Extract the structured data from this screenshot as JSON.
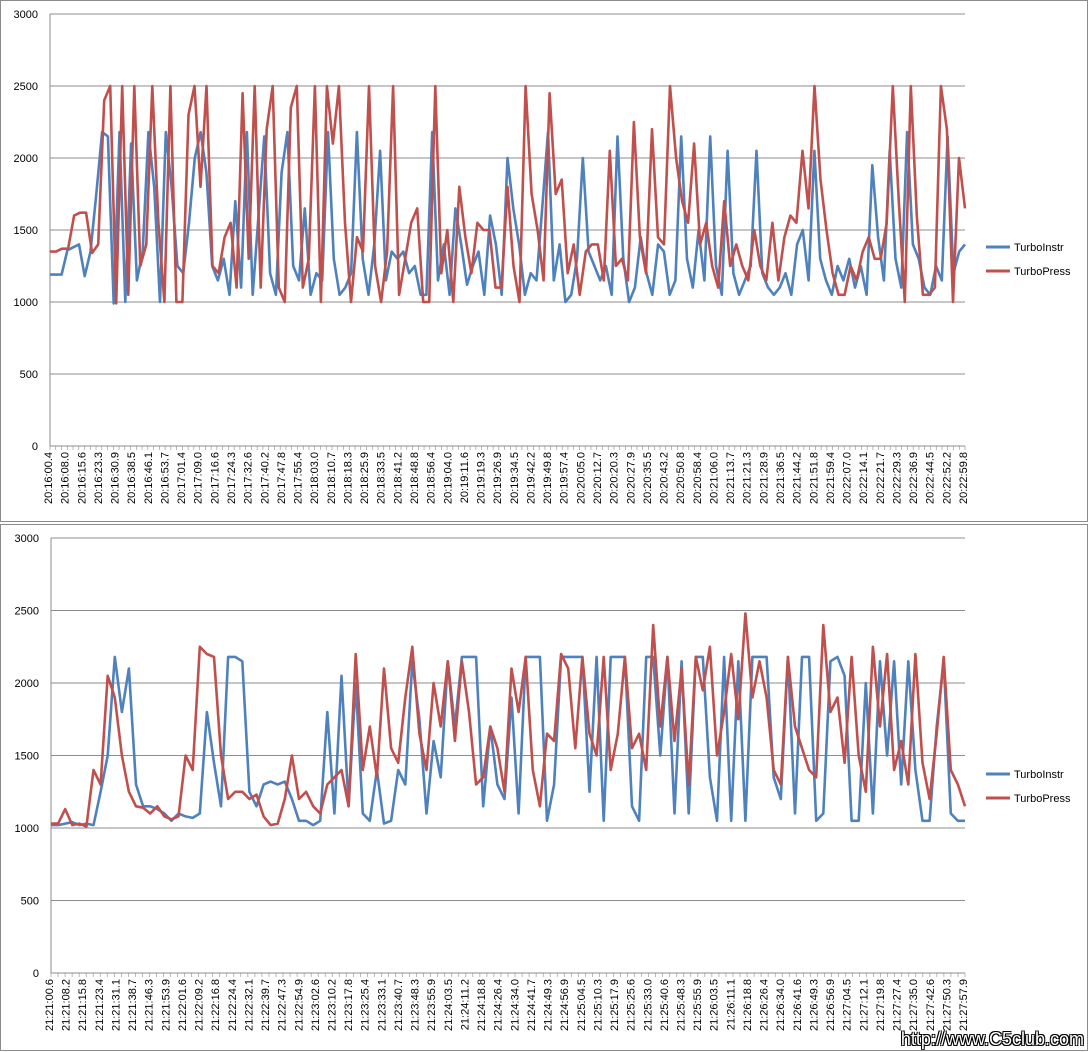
{
  "colors": {
    "instr": "#4f81bd",
    "press": "#c0504d",
    "grid": "#8c8c8c"
  },
  "watermark": "http://www.C5club.com",
  "chart_data": [
    {
      "type": "line",
      "ylim": [
        0,
        3000
      ],
      "yticks": [
        0,
        500,
        1000,
        1500,
        2000,
        2500,
        3000
      ],
      "grid": true,
      "legend": "right",
      "xlabels": [
        "20:16:00.4",
        "20:16:08.0",
        "20:16:15.6",
        "20:16:23.3",
        "20:16:30.9",
        "20:16:38.5",
        "20:16:46.1",
        "20:16:53.7",
        "20:17:01.4",
        "20:17:09.0",
        "20:17:16.6",
        "20:17:24.3",
        "20:17:32.6",
        "20:17:40.2",
        "20:17:47.8",
        "20:17:55.4",
        "20:18:03.0",
        "20:18:10.7",
        "20:18:18.3",
        "20:18:25.9",
        "20:18:33.5",
        "20:18:41.2",
        "20:18:48.8",
        "20:18:56.4",
        "20:19:04.0",
        "20:19:11.6",
        "20:19:19.3",
        "20:19:26.9",
        "20:19:34.5",
        "20:19:42.2",
        "20:19:49.8",
        "20:19:57.4",
        "20:20:05.0",
        "20:20:12.7",
        "20:20:20.3",
        "20:20:27.9",
        "20:20:35.5",
        "20:20:43.2",
        "20:20:50.8",
        "20:20:58.4",
        "20:21:06.0",
        "20:21:13.7",
        "20:21:21.3",
        "20:21:28.9",
        "20:21:36.5",
        "20:21:44.2",
        "20:21:51.8",
        "20:21:59.4",
        "20:22:07.0",
        "20:22:14.1",
        "20:22:21.7",
        "20:22:29.3",
        "20:22:36.9",
        "20:22:44.5",
        "20:22:52.2",
        "20:22:59.8"
      ],
      "series": [
        {
          "name": "TurboInstr",
          "values": [
            1190,
            1190,
            1190,
            1360,
            1380,
            1400,
            1180,
            1350,
            1750,
            2180,
            2150,
            990,
            2180,
            1000,
            2100,
            1150,
            1350,
            2180,
            1800,
            1000,
            2180,
            1800,
            1250,
            1200,
            1550,
            2000,
            2180,
            1900,
            1250,
            1150,
            1300,
            1050,
            1700,
            1100,
            2180,
            1050,
            1600,
            2150,
            1200,
            1050,
            1900,
            2180,
            1250,
            1150,
            1650,
            1050,
            1200,
            1150,
            2180,
            1300,
            1050,
            1100,
            1200,
            2180,
            1300,
            1050,
            1400,
            2050,
            1150,
            1350,
            1300,
            1350,
            1200,
            1250,
            1050,
            1050,
            2180,
            1150,
            1400,
            1050,
            1650,
            1400,
            1120,
            1250,
            1350,
            1050,
            1600,
            1400,
            1050,
            2000,
            1650,
            1400,
            1050,
            1200,
            1150,
            1650,
            2180,
            1150,
            1400,
            1000,
            1050,
            1300,
            2000,
            1350,
            1250,
            1150,
            1250,
            1050,
            2150,
            1300,
            1000,
            1100,
            1450,
            1200,
            1050,
            1400,
            1350,
            1050,
            1150,
            2150,
            1300,
            1100,
            1500,
            1150,
            2150,
            1250,
            1050,
            2050,
            1200,
            1050,
            1150,
            1250,
            2050,
            1200,
            1100,
            1050,
            1100,
            1200,
            1050,
            1400,
            1500,
            1150,
            2050,
            1300,
            1150,
            1050,
            1250,
            1150,
            1300,
            1100,
            1250,
            1050,
            1950,
            1450,
            1150,
            2050,
            1300,
            1100,
            2180,
            1400,
            1300,
            1100,
            1050,
            1250,
            1150,
            2150,
            1200,
            1350,
            1400
          ]
        },
        {
          "name": "TurboPress",
          "values": [
            1350,
            1350,
            1370,
            1370,
            1600,
            1620,
            1620,
            1340,
            1400,
            2400,
            2500,
            990,
            2500,
            1050,
            2500,
            1250,
            1400,
            2500,
            1550,
            1000,
            2500,
            1000,
            1000,
            2300,
            2500,
            1800,
            2500,
            1250,
            1200,
            1450,
            1550,
            1100,
            2450,
            1300,
            2500,
            1100,
            2200,
            2500,
            1100,
            1000,
            2350,
            2500,
            1100,
            1300,
            2500,
            1000,
            2500,
            2100,
            2500,
            1550,
            1000,
            1450,
            1350,
            2500,
            1250,
            1000,
            1350,
            2500,
            1050,
            1300,
            1550,
            1650,
            1000,
            1000,
            2500,
            1200,
            1500,
            1000,
            1800,
            1450,
            1200,
            1550,
            1500,
            1500,
            1100,
            1100,
            1800,
            1250,
            1000,
            2500,
            1750,
            1500,
            1150,
            2450,
            1750,
            1850,
            1200,
            1400,
            1050,
            1350,
            1400,
            1400,
            1150,
            2050,
            1250,
            1300,
            1150,
            2250,
            1450,
            1200,
            2200,
            1450,
            1400,
            2500,
            2000,
            1700,
            1550,
            2100,
            1400,
            1550,
            1250,
            1100,
            1700,
            1250,
            1400,
            1250,
            1150,
            1500,
            1250,
            1150,
            1550,
            1150,
            1450,
            1600,
            1550,
            2050,
            1650,
            2500,
            1850,
            1500,
            1200,
            1050,
            1050,
            1250,
            1150,
            1350,
            1450,
            1300,
            1300,
            1550,
            2500,
            1700,
            1000,
            2500,
            1600,
            1050,
            1050,
            1100,
            2500,
            2200,
            1000,
            2000,
            1650
          ]
        }
      ]
    },
    {
      "type": "line",
      "ylim": [
        0,
        3000
      ],
      "yticks": [
        0,
        500,
        1000,
        1500,
        2000,
        2500,
        3000
      ],
      "grid": true,
      "legend": "right",
      "xlabels": [
        "21:21:00.6",
        "21:21:08.2",
        "21:21:15.8",
        "21:21:23.4",
        "21:21:31.1",
        "21:21:38.7",
        "21:21:46.3",
        "21:21:53.9",
        "21:22:01.6",
        "21:22:09.2",
        "21:22:16.8",
        "21:22:24.4",
        "21:22:32.1",
        "21:22:39.7",
        "21:22:47.3",
        "21:22:54.9",
        "21:23:02.6",
        "21:23:10.2",
        "21:23:17.8",
        "21:23:25.4",
        "21:23:33.1",
        "21:23:40.7",
        "21:23:48.3",
        "21:23:55.9",
        "21:24:03.5",
        "21:24:11.2",
        "21:24:18.8",
        "21:24:26.4",
        "21:24:34.0",
        "21:24:41.7",
        "21:24:49.3",
        "21:24:56.9",
        "21:25:04.5",
        "21:25:10.3",
        "21:25:17.9",
        "21:25:25.6",
        "21:25:33.0",
        "21:25:40.6",
        "21:25:48.3",
        "21:25:55.9",
        "21:26:03.5",
        "21:26:11.1",
        "21:26:18.8",
        "21:26:26.4",
        "21:26:34.0",
        "21:26:41.6",
        "21:26:49.3",
        "21:26:56.9",
        "21:27:04.5",
        "21:27:12.1",
        "21:27:19.8",
        "21:27:27.4",
        "21:27:35.0",
        "21:27:42.6",
        "21:27:50.3",
        "21:27:57.9"
      ],
      "series": [
        {
          "name": "TurboInstr",
          "values": [
            1020,
            1020,
            1030,
            1040,
            1020,
            1030,
            1020,
            1250,
            1500,
            2180,
            1800,
            2100,
            1300,
            1150,
            1150,
            1130,
            1100,
            1050,
            1100,
            1080,
            1070,
            1100,
            1800,
            1450,
            1150,
            2180,
            2180,
            2150,
            1250,
            1150,
            1300,
            1320,
            1300,
            1320,
            1200,
            1050,
            1050,
            1020,
            1050,
            1800,
            1100,
            2050,
            1150,
            2000,
            1100,
            1050,
            1400,
            1030,
            1050,
            1400,
            1300,
            2150,
            1750,
            1100,
            1600,
            1350,
            2150,
            1700,
            2180,
            2180,
            2180,
            1150,
            1700,
            1300,
            1200,
            1900,
            1100,
            2180,
            2180,
            2180,
            1050,
            1300,
            2180,
            2180,
            2180,
            2180,
            1250,
            2180,
            1050,
            2180,
            2180,
            2180,
            1150,
            1050,
            2180,
            2180,
            1500,
            2180,
            1100,
            2150,
            1100,
            2180,
            2180,
            1350,
            1050,
            2180,
            1050,
            2150,
            1050,
            2180,
            2180,
            2180,
            1350,
            1200,
            2180,
            1100,
            2180,
            2180,
            1050,
            1100,
            2150,
            2180,
            2050,
            1050,
            1050,
            2000,
            1100,
            2150,
            1500,
            2150,
            1300,
            2150,
            1400,
            1050,
            1050,
            1700,
            2150,
            1100,
            1050,
            1050
          ]
        },
        {
          "name": "TurboPress",
          "values": [
            1030,
            1030,
            1130,
            1020,
            1030,
            1010,
            1400,
            1300,
            2050,
            1900,
            1500,
            1250,
            1150,
            1140,
            1100,
            1150,
            1080,
            1060,
            1080,
            1500,
            1400,
            2250,
            2200,
            2180,
            1500,
            1200,
            1250,
            1250,
            1200,
            1230,
            1080,
            1020,
            1030,
            1200,
            1500,
            1200,
            1250,
            1150,
            1100,
            1300,
            1350,
            1400,
            1150,
            2200,
            1400,
            1700,
            1350,
            2100,
            1550,
            1450,
            1900,
            2250,
            1650,
            1400,
            2000,
            1700,
            2150,
            1600,
            2150,
            1800,
            1300,
            1350,
            1700,
            1550,
            1250,
            2100,
            1800,
            2180,
            1400,
            1150,
            1650,
            1600,
            2200,
            2100,
            1550,
            2180,
            1650,
            1500,
            2180,
            1400,
            1650,
            2180,
            1550,
            1650,
            1400,
            2400,
            1700,
            2180,
            1600,
            2100,
            1300,
            2180,
            1950,
            2250,
            1500,
            1800,
            2200,
            1750,
            2480,
            1900,
            2150,
            1900,
            1400,
            1300,
            2180,
            1700,
            1550,
            1400,
            1350,
            2400,
            1800,
            1900,
            1450,
            2180,
            1500,
            1250,
            2250,
            1700,
            2200,
            1400,
            1600,
            1300,
            2200,
            1450,
            1200,
            1650,
            2180,
            1400,
            1300,
            1150
          ]
        }
      ]
    }
  ]
}
